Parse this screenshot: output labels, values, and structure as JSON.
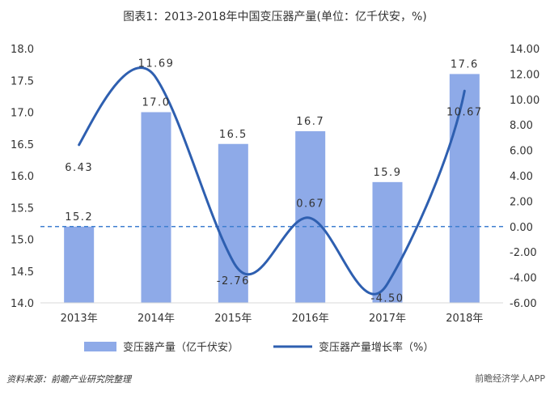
{
  "chart_title": "图表1：2013-2018年中国变压器产量(单位：亿千伏安，%)",
  "source": "资料来源：前瞻产业研究院整理",
  "watermark": "前瞻经济学人APP",
  "colors": {
    "bar": "#8eaae8",
    "line": "#2e5fb0",
    "zero_line": "#3f7fd0"
  },
  "chart_data": {
    "type": "bar",
    "categories": [
      "2013年",
      "2014年",
      "2015年",
      "2016年",
      "2017年",
      "2018年"
    ],
    "series": [
      {
        "name": "变压器产量（亿千伏安）",
        "type": "bar",
        "axis": "left",
        "values": [
          15.2,
          17.0,
          16.5,
          16.7,
          15.9,
          17.6
        ]
      },
      {
        "name": "变压器产量增长率（%）",
        "type": "line",
        "axis": "right",
        "smooth": true,
        "values": [
          6.43,
          11.69,
          -2.76,
          0.67,
          -4.5,
          10.67
        ]
      }
    ],
    "bar_labels": [
      "15.2",
      "17.0",
      "16.5",
      "16.7",
      "15.9",
      "17.6"
    ],
    "line_labels": [
      "6.43",
      "11.69",
      "-2.76",
      "0.67",
      "-4.50",
      "10.67"
    ],
    "left_axis": {
      "ylim": [
        14.0,
        18.0
      ],
      "ticks": [
        "14.0",
        "14.5",
        "15.0",
        "15.5",
        "16.0",
        "16.5",
        "17.0",
        "17.5",
        "18.0"
      ]
    },
    "right_axis": {
      "ylim": [
        -6.0,
        14.0
      ],
      "ticks": [
        "-6.00",
        "-4.00",
        "-2.00",
        "0.00",
        "2.00",
        "4.00",
        "6.00",
        "8.00",
        "10.00",
        "12.00",
        "14.00"
      ]
    },
    "zero_reference_line": true,
    "grid": false,
    "legend_position": "bottom"
  }
}
